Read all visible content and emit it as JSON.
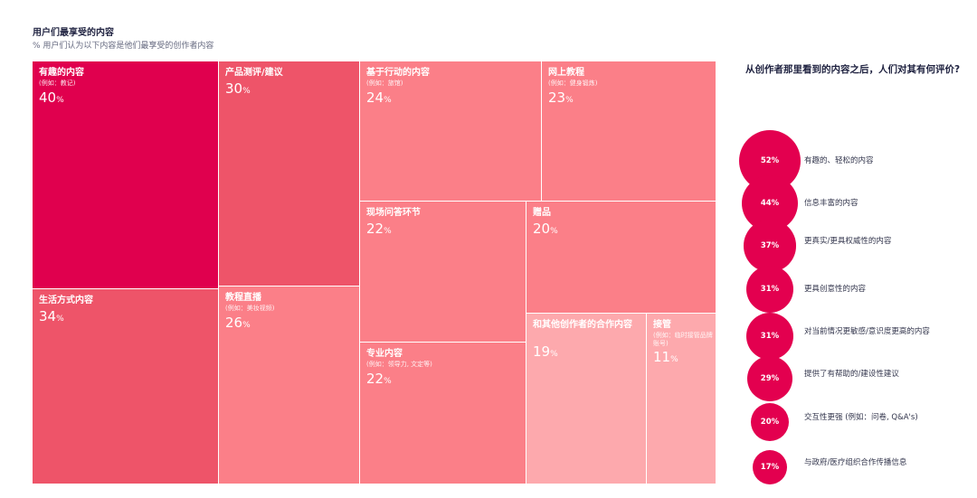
{
  "title": "用户们最享受的内容",
  "subtitle": "% 用户们认为以下内容是他们最享受的创作者内容",
  "right_title": "从创作者那里看到的内容之后，人们对其有何评价?",
  "chart_data": [
    {
      "type": "treemap",
      "title": "用户们最享受的内容",
      "subtitle": "% 用户们认为以下内容是他们最享受的创作者内容",
      "unit": "%",
      "items": [
        {
          "label": "有趣的内容",
          "note": "(例如：教记)",
          "value": 40,
          "color": "#e0004e"
        },
        {
          "label": "生活方式内容",
          "note": "",
          "value": 34,
          "color": "#ee5469"
        },
        {
          "label": "产品测评/建议",
          "note": "",
          "value": 30,
          "color": "#ee5469"
        },
        {
          "label": "教程直播",
          "note": "(例如：美妆视频)",
          "value": 26,
          "color": "#fb7f88"
        },
        {
          "label": "基于行动的内容",
          "note": "(例如：旅馆)",
          "value": 24,
          "color": "#fb7f88"
        },
        {
          "label": "网上教程",
          "note": "(例如：健身锻炼)",
          "value": 23,
          "color": "#fb7f88"
        },
        {
          "label": "现场问答环节",
          "note": "",
          "value": 22,
          "color": "#fb7f88"
        },
        {
          "label": "专业内容",
          "note": "(例如：领导力, 文定等)",
          "value": 22,
          "color": "#fb7f88"
        },
        {
          "label": "赠品",
          "note": "",
          "value": 20,
          "color": "#fb7f88"
        },
        {
          "label": "和其他创作者的合作内容",
          "note": "",
          "value": 19,
          "color": "#fda9ad"
        },
        {
          "label": "接管",
          "note": "(例如：临时接管品牌账号)",
          "value": 11,
          "color": "#fda9ad"
        }
      ]
    },
    {
      "type": "bubble",
      "title": "从创作者那里看到的内容之后，人们对其有何评价?",
      "unit": "%",
      "color": "#e3004f",
      "items": [
        {
          "label": "有趣的、轻松的内容",
          "value": 52
        },
        {
          "label": "信息丰富的内容",
          "value": 44
        },
        {
          "label": "更真实/更具权威性的内容",
          "value": 37
        },
        {
          "label": "更具创意性的内容",
          "value": 31
        },
        {
          "label": "对当前情况更敏感/意识度更高的内容",
          "value": 31
        },
        {
          "label": "提供了有帮助的/建设性建议",
          "value": 29
        },
        {
          "label": "交互性更强 (例如：问卷, Q&A's)",
          "value": 20
        },
        {
          "label": "与政府/医疗组织合作传播信息",
          "value": 17
        }
      ]
    }
  ]
}
